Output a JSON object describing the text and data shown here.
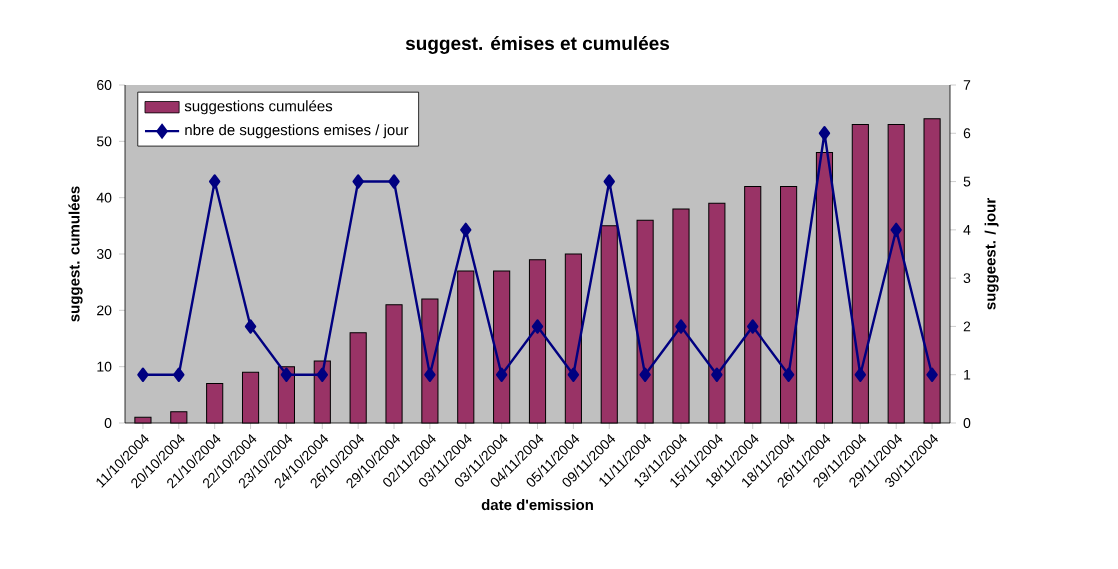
{
  "chart_data": {
    "type": "bar",
    "title": "suggest. émises et cumulées",
    "xlabel": "date d'emission",
    "ylabel": "suggest. cumulées",
    "y2label": "suggeest. / jour",
    "categories": [
      "11/10/2004",
      "20/10/2004",
      "21/10/2004",
      "22/10/2004",
      "23/10/2004",
      "24/10/2004",
      "26/10/2004",
      "29/10/2004",
      "02/11/2004",
      "03/11/2004",
      "03/11/2004",
      "04/11/2004",
      "05/11/2004",
      "09/11/2004",
      "11/11/2004",
      "13/11/2004",
      "15/11/2004",
      "18/11/2004",
      "18/11/2004",
      "26/11/2004",
      "29/11/2004",
      "29/11/2004",
      "30/11/2004"
    ],
    "series": [
      {
        "name": "suggestions cumulées",
        "color": "#993366",
        "values": [
          1,
          2,
          7,
          9,
          10,
          11,
          16,
          21,
          22,
          27,
          27,
          29,
          30,
          35,
          36,
          38,
          39,
          42,
          42,
          48,
          53,
          53,
          54
        ]
      },
      {
        "name": "nbre de suggestions emises / jour",
        "type": "line",
        "axis": "y2",
        "color": "#000080",
        "marker": "diamond",
        "line_style": "solid",
        "values": [
          1,
          1,
          5,
          2,
          1,
          1,
          5,
          5,
          1,
          4,
          1,
          2,
          1,
          5,
          1,
          2,
          1,
          2,
          1,
          6,
          1,
          4,
          1
        ]
      }
    ],
    "ylim": [
      0,
      60
    ],
    "yticks": [
      0,
      10,
      20,
      30,
      40,
      50,
      60
    ],
    "y2lim": [
      0,
      7
    ],
    "y2ticks": [
      0,
      1,
      2,
      3,
      4,
      5,
      6,
      7
    ],
    "grid": false,
    "legend": "top left"
  }
}
